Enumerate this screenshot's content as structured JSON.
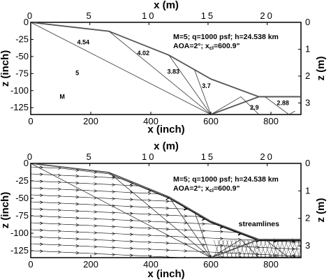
{
  "chart_data": [
    {
      "type": "line",
      "panel": "top",
      "xlabel": "x (inch)",
      "ylabel": "z (inch)",
      "x2label": "x (m)",
      "y2label": "z (m)",
      "xlim": [
        0,
        900
      ],
      "ylim": [
        -135,
        0
      ],
      "x_ticks": [
        0,
        200,
        400,
        600,
        800
      ],
      "y_ticks": [
        0,
        -25,
        -50,
        -75,
        -100,
        -125
      ],
      "x2_ticks": [
        0,
        5,
        10,
        15,
        20
      ],
      "y2_ticks": [
        0,
        1,
        2,
        3
      ],
      "annotation_lines": [
        "M=5; q=1000 psf; h=24.538 km",
        "AOA=2°; x",
        "cl",
        "=600.9\""
      ],
      "region_labels": [
        {
          "text": "4.54",
          "x": 175,
          "z": -32
        },
        {
          "text": "4.02",
          "x": 375,
          "z": -48
        },
        {
          "text": "3.83",
          "x": 475,
          "z": -75
        },
        {
          "text": "3.7",
          "x": 585,
          "z": -96
        },
        {
          "text": "5",
          "x": 155,
          "z": -77
        },
        {
          "text": "M",
          "x": 105,
          "z": -112
        },
        {
          "text": "2.9",
          "x": 745,
          "z": -128
        },
        {
          "text": "2.88",
          "x": 840,
          "z": -121
        }
      ],
      "series": [
        {
          "role": "inlet-surface",
          "x": [
            0,
            260,
            460,
            600,
            760,
            910
          ],
          "z": [
            0,
            -13,
            -48,
            -83,
            -109,
            -109
          ]
        },
        {
          "role": "cowl",
          "x": [
            600,
            760,
            910
          ],
          "z": [
            -135,
            -109,
            -109
          ]
        },
        {
          "role": "shock",
          "x": [
            0,
            600
          ],
          "z": [
            0,
            -135
          ]
        },
        {
          "role": "shock",
          "x": [
            260,
            600
          ],
          "z": [
            -13,
            -135
          ]
        },
        {
          "role": "shock",
          "x": [
            460,
            600
          ],
          "z": [
            -48,
            -135
          ]
        },
        {
          "role": "shock",
          "x": [
            545,
            600
          ],
          "z": [
            -69,
            -135
          ]
        },
        {
          "role": "shock",
          "x": [
            600,
            700,
            760
          ],
          "z": [
            -135,
            -109,
            -135
          ]
        },
        {
          "role": "shock",
          "x": [
            780,
            860,
            880
          ],
          "z": [
            -109,
            -135,
            -130
          ]
        }
      ]
    },
    {
      "type": "line",
      "panel": "bottom",
      "xlabel": "x (inch)",
      "ylabel": "z (inch)",
      "x2label": "x (m)",
      "y2label": "z (m)",
      "xlim": [
        0,
        900
      ],
      "ylim": [
        -135,
        0
      ],
      "x_ticks": [
        0,
        200,
        400,
        600,
        800
      ],
      "y_ticks": [
        0,
        -25,
        -50,
        -75,
        -100,
        -125
      ],
      "x2_ticks": [
        0,
        5,
        10,
        15,
        20
      ],
      "y2_ticks": [
        0,
        1,
        2,
        3
      ],
      "annotation_lines": [
        "M=5; q=1000 psf; h=24.538 km",
        "AOA=2°; x",
        "cl",
        "=600.9\""
      ],
      "region_labels": [
        {
          "text": "streamlines",
          "x": 760,
          "z": -90
        }
      ],
      "streamline_start_z": [
        -5,
        -15,
        -25,
        -35,
        -45,
        -55,
        -65,
        -75,
        -85,
        -95,
        -105,
        -115,
        -125
      ]
    }
  ]
}
